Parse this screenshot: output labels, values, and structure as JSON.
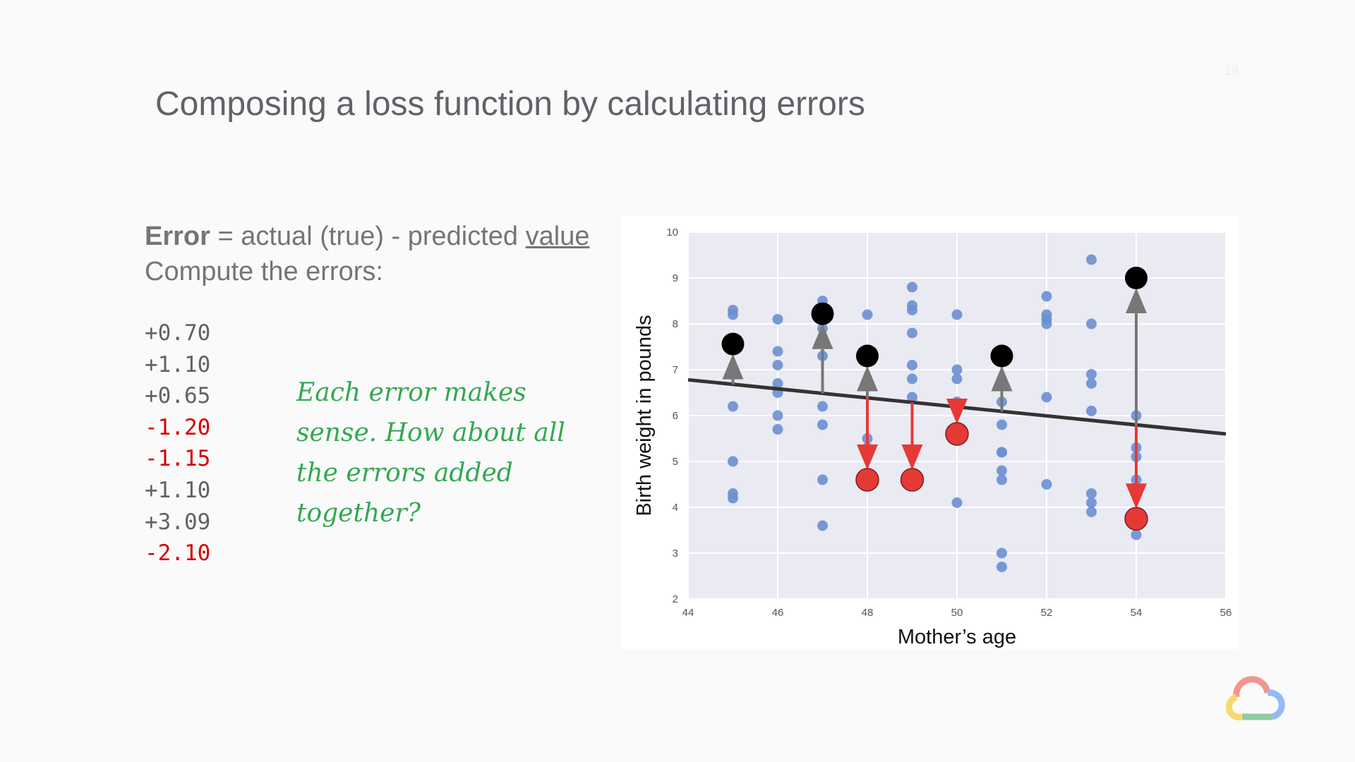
{
  "slide": {
    "title": "Composing a loss function by calculating errors",
    "page_number": "19"
  },
  "definition": {
    "term": "Error",
    "equals": " = actual (true) - predicted ",
    "underlined": "value",
    "line2": "Compute the errors:"
  },
  "errors": [
    {
      "text": "+0.70",
      "negative": false
    },
    {
      "text": "+1.10",
      "negative": false
    },
    {
      "text": "+0.65",
      "negative": false
    },
    {
      "text": "-1.20",
      "negative": true
    },
    {
      "text": "-1.15",
      "negative": true
    },
    {
      "text": "+1.10",
      "negative": false
    },
    {
      "text": "+3.09",
      "negative": false
    },
    {
      "text": "-2.10",
      "negative": true
    }
  ],
  "note": "Each error makes sense. How about all the errors added together?",
  "colors": {
    "scatter": "#6b8fd1",
    "actual_above": "#000000",
    "actual_below": "#e53935",
    "arrow_up": "#777777",
    "arrow_down": "#e53935",
    "plot_bg": "#eaeaf2",
    "negative_text": "#d50000",
    "note_text": "#34a853"
  },
  "chart_data": {
    "type": "scatter",
    "xlabel": "Mother’s age",
    "ylabel": "Birth weight in pounds",
    "xlim": [
      44,
      56
    ],
    "ylim": [
      2,
      10
    ],
    "xticks": [
      44,
      46,
      48,
      50,
      52,
      54,
      56
    ],
    "yticks": [
      2,
      3,
      4,
      5,
      6,
      7,
      8,
      9,
      10
    ],
    "grid": true,
    "regression_line": {
      "x": [
        44,
        56
      ],
      "y": [
        6.78,
        5.6
      ]
    },
    "scatter_points": [
      {
        "x": 45,
        "y": 8.3
      },
      {
        "x": 45,
        "y": 8.2
      },
      {
        "x": 45,
        "y": 7.6
      },
      {
        "x": 45,
        "y": 6.2
      },
      {
        "x": 45,
        "y": 5.0
      },
      {
        "x": 45,
        "y": 4.3
      },
      {
        "x": 45,
        "y": 4.2
      },
      {
        "x": 46,
        "y": 8.1
      },
      {
        "x": 46,
        "y": 7.4
      },
      {
        "x": 46,
        "y": 7.1
      },
      {
        "x": 46,
        "y": 6.7
      },
      {
        "x": 46,
        "y": 6.5
      },
      {
        "x": 46,
        "y": 6.0
      },
      {
        "x": 46,
        "y": 5.7
      },
      {
        "x": 47,
        "y": 8.5
      },
      {
        "x": 47,
        "y": 7.9
      },
      {
        "x": 47,
        "y": 7.3
      },
      {
        "x": 47,
        "y": 6.2
      },
      {
        "x": 47,
        "y": 5.8
      },
      {
        "x": 47,
        "y": 4.6
      },
      {
        "x": 47,
        "y": 3.6
      },
      {
        "x": 48,
        "y": 8.2
      },
      {
        "x": 48,
        "y": 5.5
      },
      {
        "x": 48,
        "y": 5.3
      },
      {
        "x": 49,
        "y": 8.8
      },
      {
        "x": 49,
        "y": 8.4
      },
      {
        "x": 49,
        "y": 8.3
      },
      {
        "x": 49,
        "y": 7.8
      },
      {
        "x": 49,
        "y": 7.1
      },
      {
        "x": 49,
        "y": 6.8
      },
      {
        "x": 49,
        "y": 6.4
      },
      {
        "x": 50,
        "y": 8.2
      },
      {
        "x": 50,
        "y": 7.0
      },
      {
        "x": 50,
        "y": 6.8
      },
      {
        "x": 50,
        "y": 6.3
      },
      {
        "x": 50,
        "y": 4.1
      },
      {
        "x": 51,
        "y": 6.3
      },
      {
        "x": 51,
        "y": 5.8
      },
      {
        "x": 51,
        "y": 5.2
      },
      {
        "x": 51,
        "y": 5.2
      },
      {
        "x": 51,
        "y": 4.8
      },
      {
        "x": 51,
        "y": 4.6
      },
      {
        "x": 51,
        "y": 3.0
      },
      {
        "x": 51,
        "y": 2.7
      },
      {
        "x": 52,
        "y": 8.6
      },
      {
        "x": 52,
        "y": 8.2
      },
      {
        "x": 52,
        "y": 8.1
      },
      {
        "x": 52,
        "y": 8.0
      },
      {
        "x": 52,
        "y": 6.4
      },
      {
        "x": 52,
        "y": 4.5
      },
      {
        "x": 53,
        "y": 9.4
      },
      {
        "x": 53,
        "y": 8.0
      },
      {
        "x": 53,
        "y": 6.9
      },
      {
        "x": 53,
        "y": 6.7
      },
      {
        "x": 53,
        "y": 6.1
      },
      {
        "x": 53,
        "y": 4.3
      },
      {
        "x": 53,
        "y": 4.1
      },
      {
        "x": 53,
        "y": 3.9
      },
      {
        "x": 54,
        "y": 6.0
      },
      {
        "x": 54,
        "y": 5.3
      },
      {
        "x": 54,
        "y": 5.1
      },
      {
        "x": 54,
        "y": 4.6
      },
      {
        "x": 54,
        "y": 3.8
      },
      {
        "x": 54,
        "y": 3.4
      }
    ],
    "highlighted_points": [
      {
        "x": 45,
        "y": 7.56,
        "side": "above"
      },
      {
        "x": 47,
        "y": 8.22,
        "side": "above"
      },
      {
        "x": 48,
        "y": 7.3,
        "side": "above"
      },
      {
        "x": 48,
        "y": 4.6,
        "side": "below"
      },
      {
        "x": 49,
        "y": 4.6,
        "side": "below"
      },
      {
        "x": 50,
        "y": 5.6,
        "side": "below"
      },
      {
        "x": 51,
        "y": 7.3,
        "side": "above"
      },
      {
        "x": 54,
        "y": 9.0,
        "side": "above"
      },
      {
        "x": 54,
        "y": 3.75,
        "side": "below"
      }
    ]
  }
}
